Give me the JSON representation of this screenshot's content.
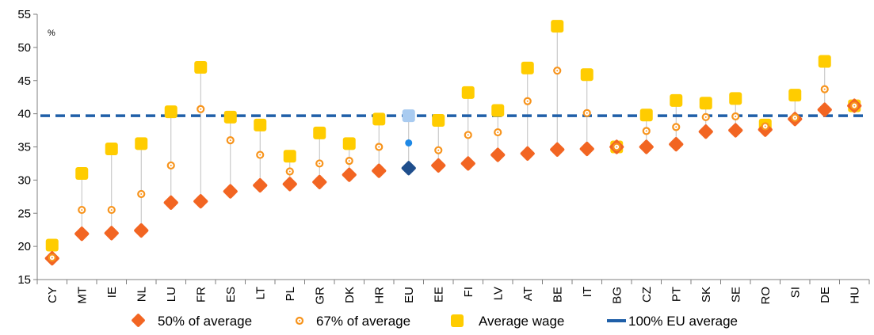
{
  "chart_data": {
    "type": "scatter",
    "unit_label": "%",
    "ylim": [
      15,
      55
    ],
    "yticks": [
      15,
      20,
      25,
      30,
      35,
      40,
      45,
      50,
      55
    ],
    "grid": false,
    "legend_position": "bottom",
    "categories": [
      "CY",
      "MT",
      "IE",
      "NL",
      "LU",
      "FR",
      "ES",
      "LT",
      "PL",
      "GR",
      "DK",
      "HR",
      "EU",
      "EE",
      "FI",
      "LV",
      "AT",
      "BE",
      "IT",
      "BG",
      "CZ",
      "PT",
      "SK",
      "SE",
      "RO",
      "SI",
      "DE",
      "HU"
    ],
    "highlight_category": "EU",
    "series": [
      {
        "name": "50% of average",
        "marker": "diamond",
        "color": "#F26522",
        "highlight_color": "#1F4E8C",
        "values": [
          18.2,
          21.9,
          22.0,
          22.4,
          26.6,
          26.8,
          28.3,
          29.2,
          29.4,
          29.7,
          30.8,
          31.4,
          31.8,
          32.2,
          32.5,
          33.8,
          34.0,
          34.6,
          34.7,
          35.0,
          35.0,
          35.4,
          37.3,
          37.5,
          37.6,
          39.2,
          40.6,
          41.2
        ]
      },
      {
        "name": "67% of average",
        "marker": "ring",
        "color": "#F7941D",
        "highlight_color": "#1E88E5",
        "values": [
          18.3,
          25.5,
          25.5,
          27.9,
          32.2,
          40.7,
          36.0,
          33.8,
          31.3,
          32.5,
          32.9,
          35.0,
          35.6,
          34.5,
          36.8,
          37.2,
          41.9,
          46.5,
          40.1,
          35.0,
          37.4,
          38.0,
          39.5,
          39.6,
          38.1,
          39.4,
          43.7,
          41.2
        ]
      },
      {
        "name": "Average wage",
        "marker": "square",
        "color": "#FFCC00",
        "highlight_color": "#A9CBF0",
        "values": [
          20.2,
          31.0,
          34.7,
          35.5,
          40.3,
          47.0,
          39.5,
          38.3,
          33.6,
          37.1,
          35.5,
          39.2,
          39.7,
          39.0,
          43.2,
          40.5,
          46.9,
          53.2,
          45.9,
          35.0,
          39.8,
          42.0,
          41.6,
          42.3,
          38.3,
          42.8,
          47.9,
          41.2
        ]
      },
      {
        "name": "100% EU average",
        "marker": "dashed-line",
        "color": "#1F5FA8",
        "value": 39.7
      }
    ]
  }
}
